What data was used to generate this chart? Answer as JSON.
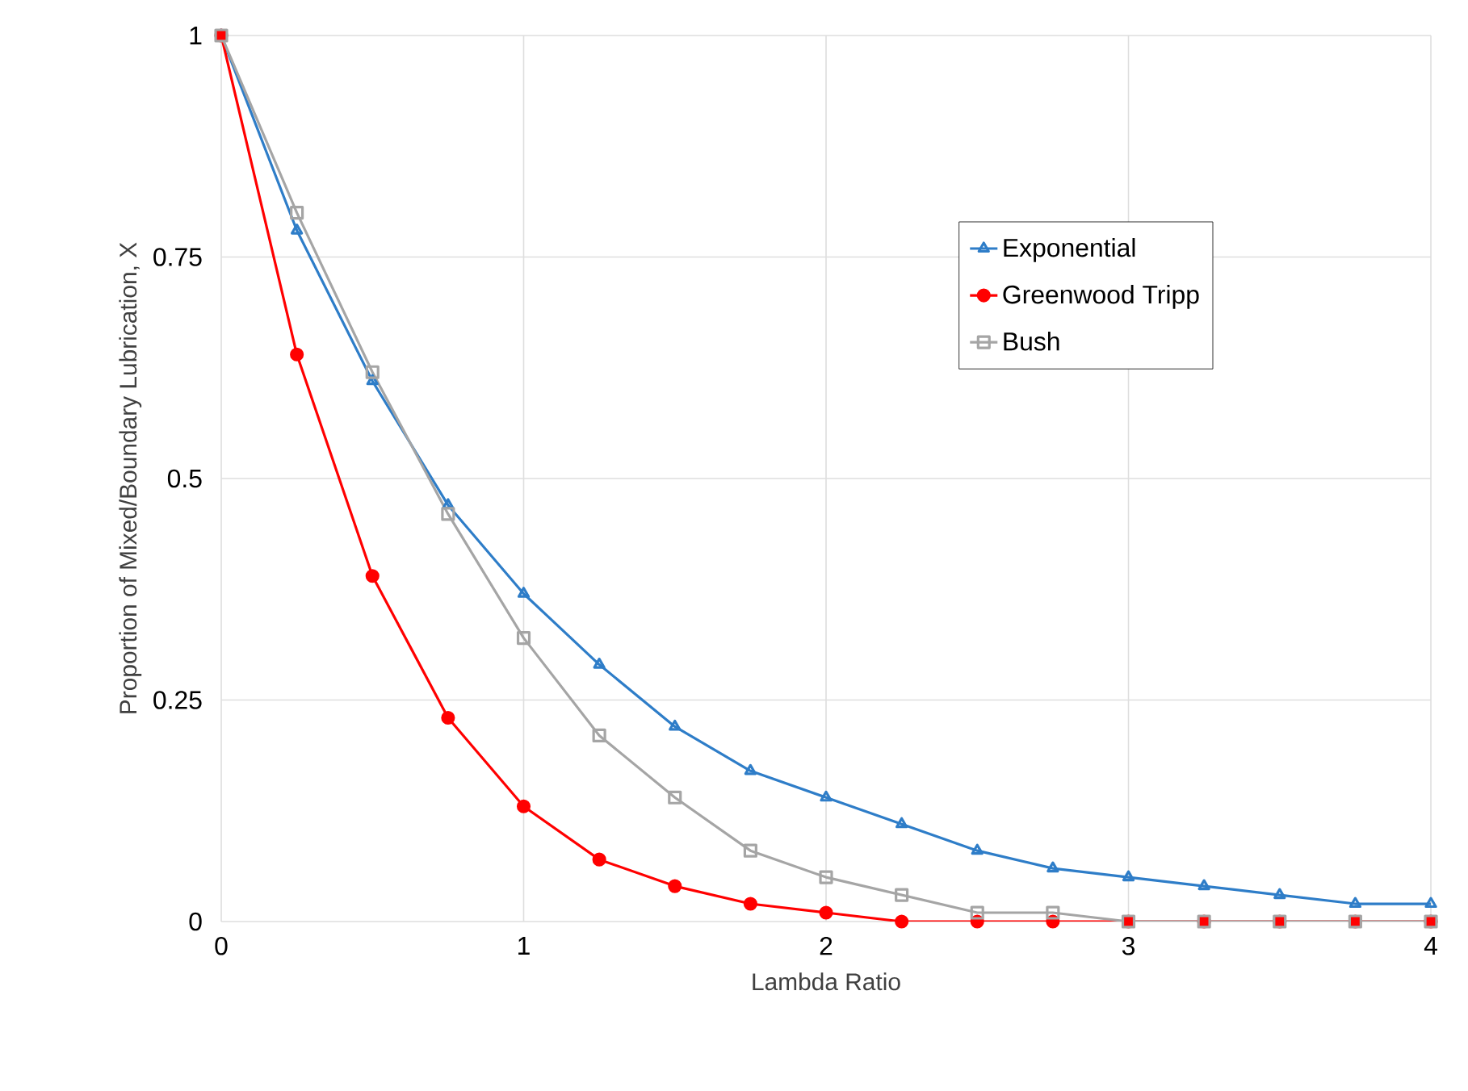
{
  "chart_data": {
    "type": "line",
    "xlabel": "Lambda Ratio",
    "ylabel": "Proportion of Mixed/Boundary Lubrication, X",
    "x": [
      0,
      0.25,
      0.5,
      0.75,
      1,
      1.25,
      1.5,
      1.75,
      2,
      2.25,
      2.5,
      2.75,
      3,
      3.25,
      3.5,
      3.75,
      4
    ],
    "series": [
      {
        "name": "Exponential",
        "color": "#2e7dc8",
        "marker": "triangle",
        "values": [
          1,
          0.78,
          0.61,
          0.47,
          0.37,
          0.29,
          0.22,
          0.17,
          0.14,
          0.11,
          0.08,
          0.06,
          0.05,
          0.04,
          0.03,
          0.02,
          0.02
        ]
      },
      {
        "name": "Greenwood Tripp",
        "color": "#ff0000",
        "marker": "circle",
        "values": [
          1,
          0.64,
          0.39,
          0.23,
          0.13,
          0.07,
          0.04,
          0.02,
          0.01,
          0.0,
          0.0,
          0.0,
          0.0,
          0.0,
          0.0,
          0.0,
          0.0
        ]
      },
      {
        "name": "Bush",
        "color": "#a5a5a5",
        "marker": "square",
        "values": [
          1,
          0.8,
          0.62,
          0.46,
          0.32,
          0.21,
          0.14,
          0.08,
          0.05,
          0.03,
          0.01,
          0.01,
          0.0,
          0.0,
          0.0,
          0.0,
          0.0
        ]
      }
    ],
    "xlim": [
      0,
      4
    ],
    "ylim": [
      0,
      1
    ],
    "xticks": [
      0,
      1,
      2,
      3,
      4
    ],
    "yticks": [
      0,
      0.25,
      0.5,
      0.75,
      1
    ],
    "grid": true,
    "legend": "top right",
    "line_style": "solid"
  }
}
